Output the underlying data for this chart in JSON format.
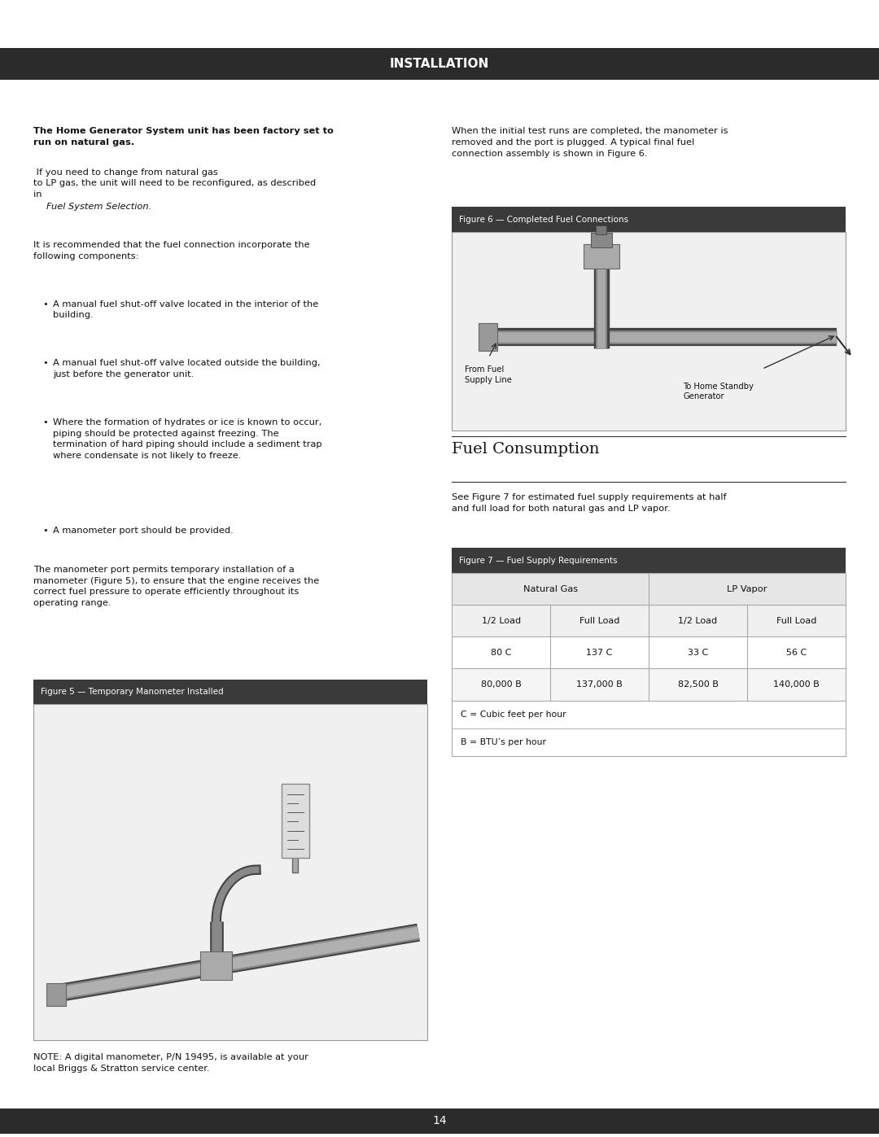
{
  "page_bg": "#ffffff",
  "header_bg": "#2b2b2b",
  "header_text": "INSTALLATION",
  "header_text_color": "#ffffff",
  "footer_bg": "#2b2b2b",
  "footer_text": "14",
  "footer_text_color": "#ffffff",
  "figure5_caption": "Figure 5 — Temporary Manometer Installed",
  "figure6_caption": "Figure 6 — Completed Fuel Connections",
  "figure7_caption": "Figure 7 — Fuel Supply Requirements",
  "section_title": "Fuel Consumption",
  "table_headers_row2": [
    "1/2 Load",
    "Full Load",
    "1/2 Load",
    "Full Load"
  ],
  "table_data": [
    [
      "80 C",
      "137 C",
      "33 C",
      "56 C"
    ],
    [
      "80,000 B",
      "137,000 B",
      "82,500 B",
      "140,000 B"
    ]
  ],
  "table_footnotes": [
    "C = Cubic feet per hour",
    "B = BTU’s per hour"
  ],
  "fig5_caption_bg": "#3a3a3a",
  "fig5_caption_color": "#ffffff",
  "fig6_caption_bg": "#3a3a3a",
  "fig6_caption_color": "#ffffff",
  "fig7_caption_bg": "#3a3a3a",
  "fig7_caption_color": "#ffffff",
  "table_border_color": "#aaaaaa",
  "table_row_alt": "#f5f5f5",
  "divider_color": "#555555",
  "body_fontsize": 8.2,
  "caption_fontsize": 7.5
}
